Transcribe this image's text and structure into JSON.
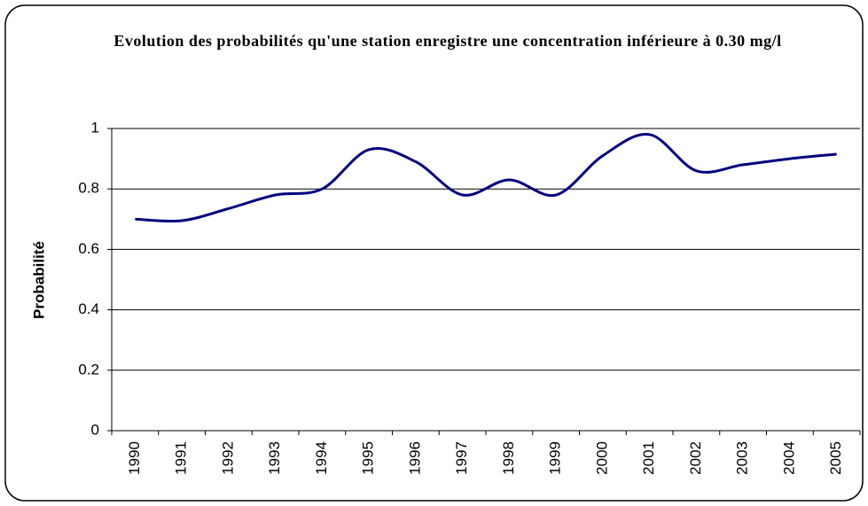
{
  "chart_data": {
    "type": "line",
    "title": "Evolution des probabilités qu'une station enregistre une concentration inférieure à 0.30 mg/l",
    "y_label": "Probabilité",
    "categories": [
      "1990",
      "1991",
      "1992",
      "1993",
      "1994",
      "1995",
      "1996",
      "1997",
      "1998",
      "1999",
      "2000",
      "2001",
      "2002",
      "2003",
      "2004",
      "2005"
    ],
    "series": [
      {
        "name": "Probabilité",
        "color": "#000080",
        "values": [
          0.7,
          0.695,
          0.735,
          0.78,
          0.8,
          0.93,
          0.89,
          0.78,
          0.83,
          0.78,
          0.91,
          0.98,
          0.86,
          0.88,
          0.9,
          0.915
        ]
      }
    ],
    "ylim": [
      0,
      1
    ],
    "yticks": [
      0,
      0.2,
      0.4,
      0.6,
      0.8,
      1
    ],
    "grid": true
  }
}
